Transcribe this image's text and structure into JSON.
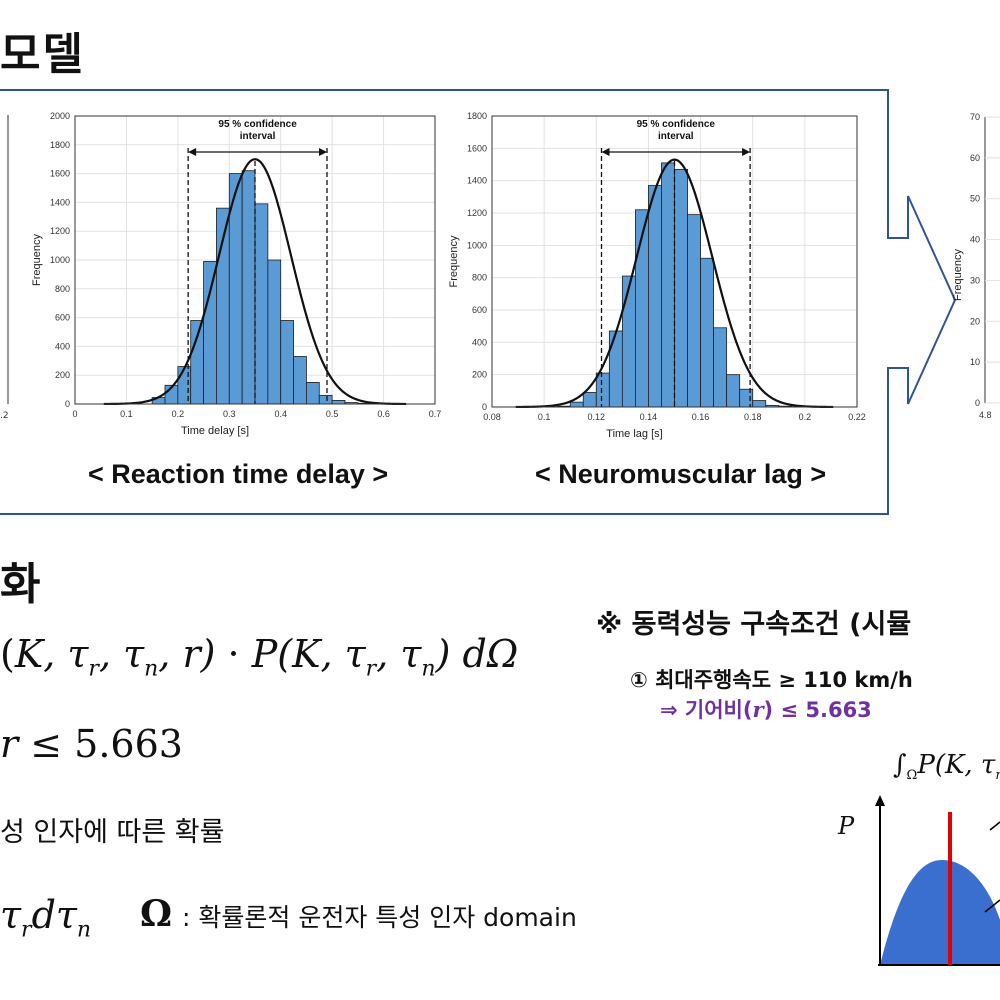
{
  "slide": {
    "title_top": "모델",
    "title_mid": "화",
    "caption_reaction": "< Reaction time delay >",
    "caption_neuro": "< Neuromuscular lag >",
    "left_partial_tick": ".2",
    "right_partial": {
      "ylabel": "Frequency",
      "yticks": [
        "0",
        "10",
        "20",
        "30",
        "40",
        "50",
        "60",
        "70"
      ],
      "xtick": "4.8"
    },
    "formula_top": "(K, τ",
    "formula_top_full": "(K, τr, τn, r)· P(K, τr, τn) dΩ",
    "formula_ineq": "r ≤ 5.663",
    "text_prob": "성 인자에 따른 확률",
    "formula_bottom_math": "τr dτn",
    "omega_symbol": "Ω",
    "omega_desc": ": 확률론적 운전자 특성 인자 domain",
    "notice": "※ 동력성능 구속조건 (시뮬",
    "cond1": "① 최대주행속도 ≥ 110 km/h",
    "cond2": "⇒ 기어비(r) ≤ 5.663",
    "small_integral": "∫",
    "small_integral_sub": "Ω",
    "small_integral_body": "P(K, τ",
    "small_P": "P"
  },
  "chart_data": [
    {
      "type": "bar",
      "title": "95 % confidence interval",
      "xlabel": "Time delay [s]",
      "ylabel": "Frequency",
      "xlim": [
        0,
        0.7
      ],
      "ylim": [
        0,
        2000
      ],
      "xticks": [
        0,
        0.1,
        0.2,
        0.3,
        0.4,
        0.5,
        0.6,
        0.7
      ],
      "yticks": [
        0,
        200,
        400,
        600,
        800,
        1000,
        1200,
        1400,
        1600,
        1800,
        2000
      ],
      "bin_width": 0.025,
      "bin_starts": [
        0.15,
        0.175,
        0.2,
        0.225,
        0.25,
        0.275,
        0.3,
        0.325,
        0.35,
        0.375,
        0.4,
        0.425,
        0.45,
        0.475,
        0.5,
        0.525,
        0.55
      ],
      "values": [
        45,
        130,
        260,
        580,
        990,
        1360,
        1600,
        1620,
        1390,
        1000,
        580,
        330,
        150,
        60,
        25,
        10,
        5
      ],
      "fit_curve": {
        "mean": 0.35,
        "sd": 0.07,
        "peak": 1700
      },
      "ci": [
        0.22,
        0.49
      ],
      "mean_line": 0.35,
      "grid": true
    },
    {
      "type": "bar",
      "title": "95 % confidence interval",
      "xlabel": "Time lag [s]",
      "ylabel": "Frequency",
      "xlim": [
        0.08,
        0.22
      ],
      "ylim": [
        0,
        1800
      ],
      "xticks": [
        0.08,
        0.1,
        0.12,
        0.14,
        0.16,
        0.18,
        0.2,
        0.22
      ],
      "yticks": [
        0,
        200,
        400,
        600,
        800,
        1000,
        1200,
        1400,
        1600,
        1800
      ],
      "bin_width": 0.005,
      "bin_starts": [
        0.105,
        0.11,
        0.115,
        0.12,
        0.125,
        0.13,
        0.135,
        0.14,
        0.145,
        0.15,
        0.155,
        0.16,
        0.165,
        0.17,
        0.175,
        0.18,
        0.185,
        0.19
      ],
      "values": [
        5,
        30,
        90,
        210,
        470,
        810,
        1220,
        1370,
        1510,
        1470,
        1190,
        920,
        490,
        200,
        110,
        40,
        10,
        5
      ],
      "fit_curve": {
        "mean": 0.15,
        "sd": 0.0145,
        "peak": 1530
      },
      "ci": [
        0.122,
        0.179
      ],
      "mean_line": 0.15,
      "grid": true
    }
  ]
}
